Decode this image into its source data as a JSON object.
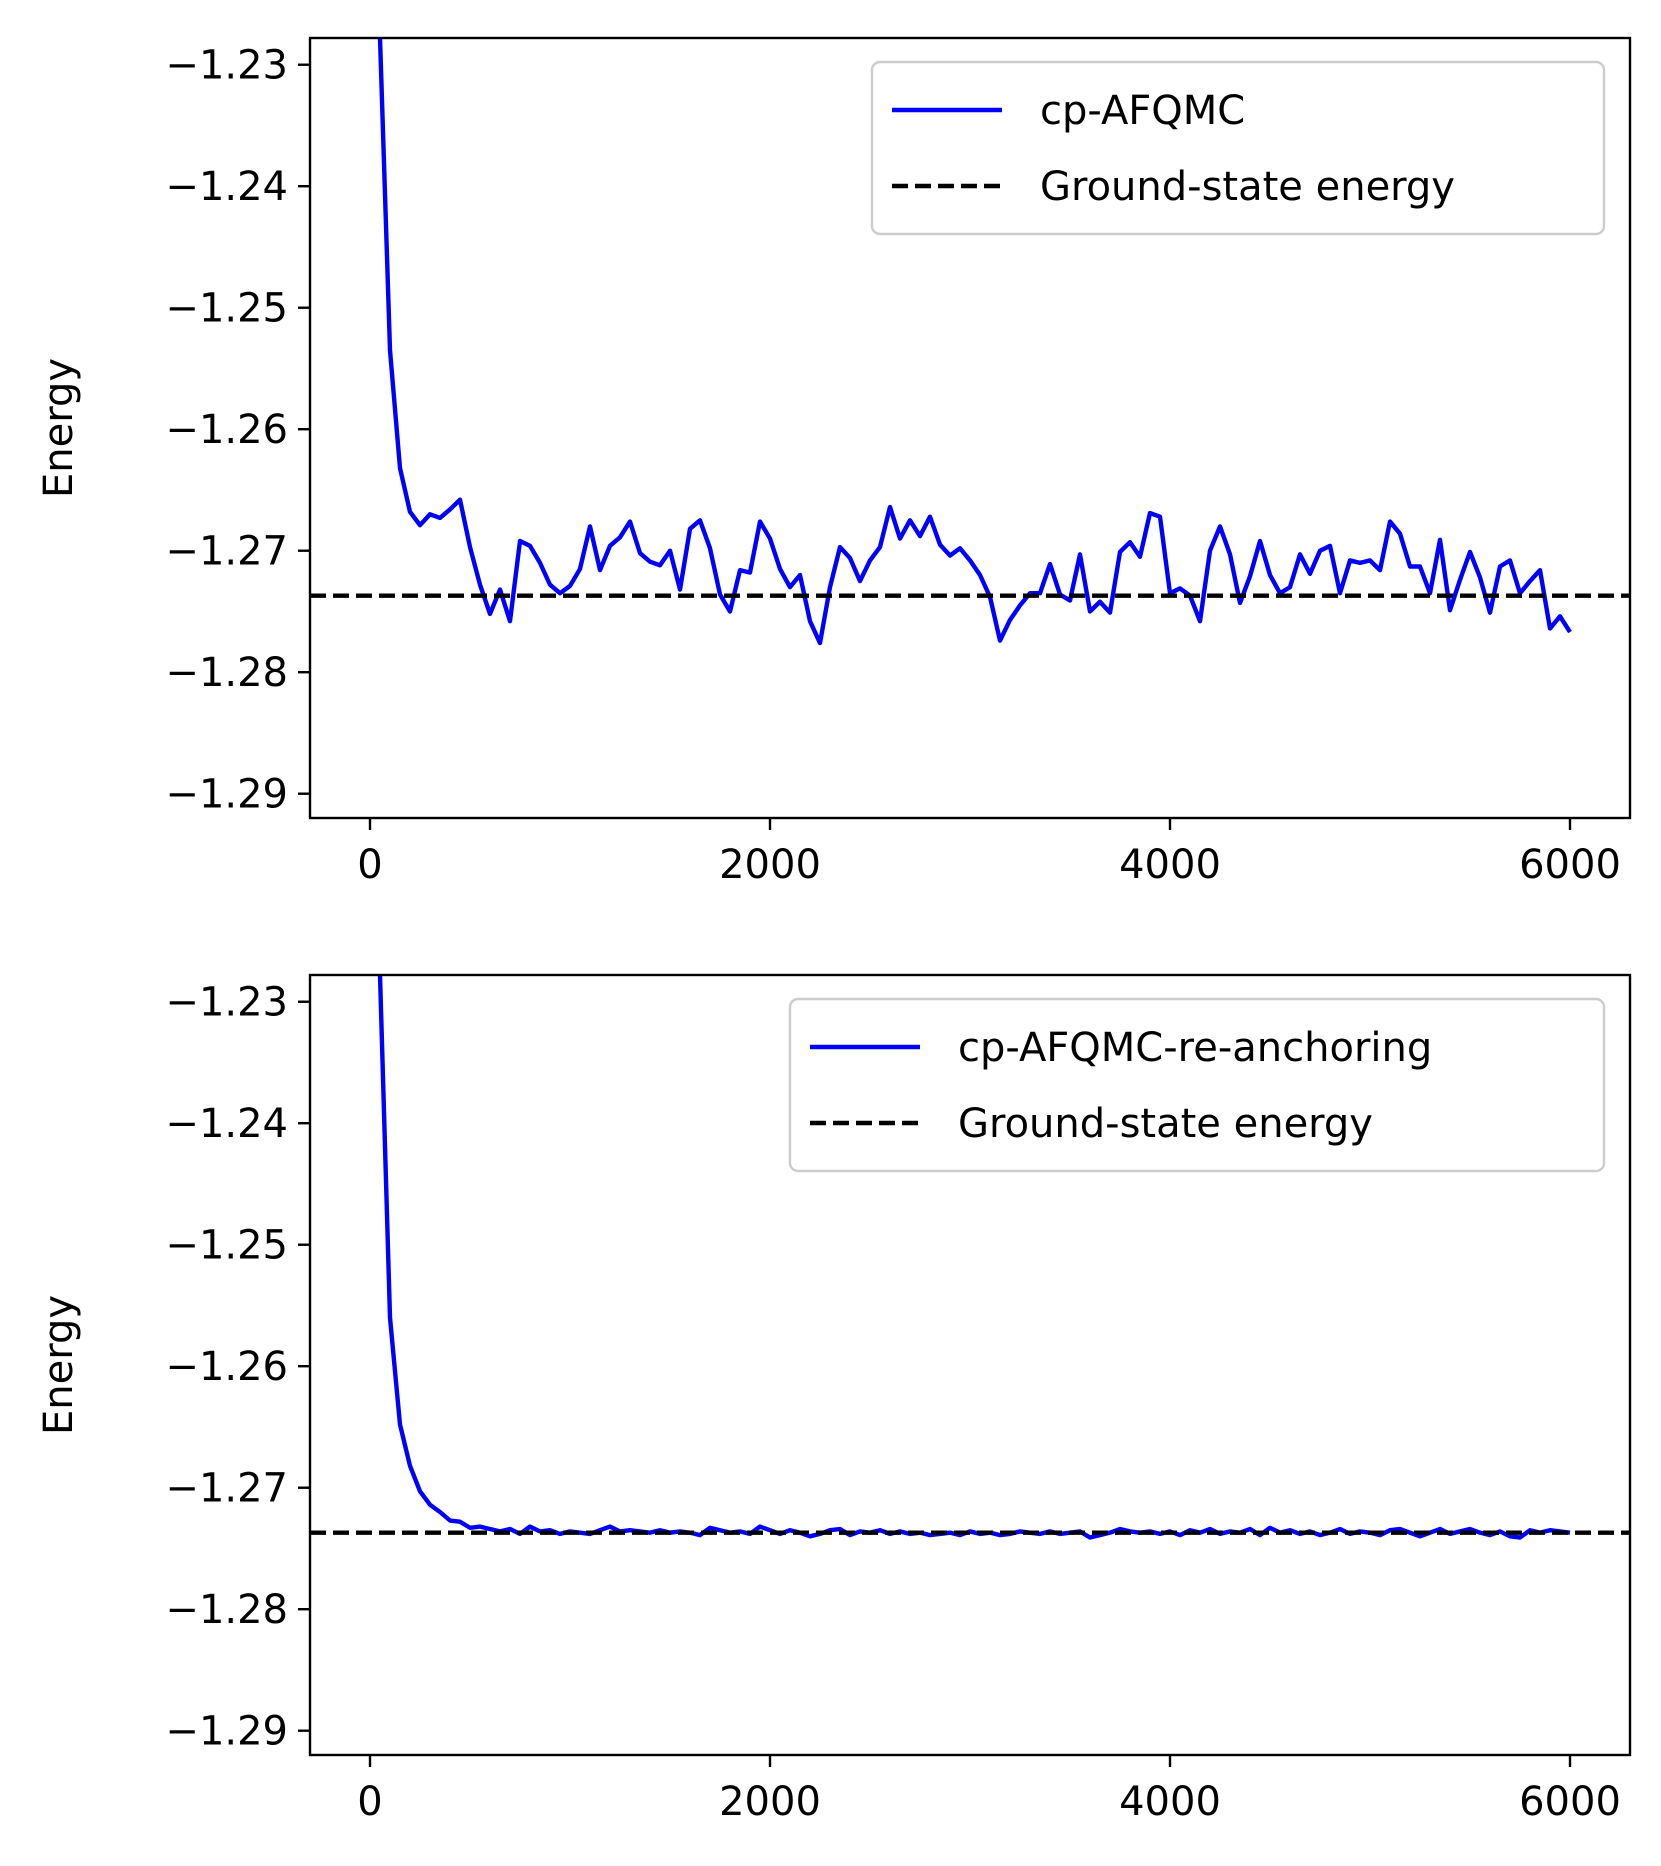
{
  "colors": {
    "series": "#0000ff",
    "reference": "#000000",
    "legend_border": "#cccccc"
  },
  "chart_data": [
    {
      "type": "line",
      "ylabel": "Energy",
      "xlabel": "",
      "xlim": [
        -300,
        6300
      ],
      "ylim": [
        -1.292,
        -1.2278
      ],
      "xticks": [
        0,
        2000,
        4000,
        6000
      ],
      "xtick_labels": [
        "0",
        "2000",
        "4000",
        "6000"
      ],
      "yticks": [
        -1.23,
        -1.24,
        -1.25,
        -1.26,
        -1.27,
        -1.28,
        -1.29
      ],
      "ytick_labels": [
        "−1.23",
        "−1.24",
        "−1.25",
        "−1.26",
        "−1.27",
        "−1.28",
        "−1.29"
      ],
      "grid": false,
      "legend_position": "upper-right",
      "series": [
        {
          "name": "cp-AFQMC",
          "color": "#0000ff",
          "style": "solid",
          "x": [
            50,
            100,
            150,
            200,
            250,
            300,
            350,
            400,
            450,
            500,
            550,
            600,
            650,
            700,
            750,
            800,
            850,
            900,
            950,
            1000,
            1050,
            1100,
            1150,
            1200,
            1250,
            1300,
            1350,
            1400,
            1450,
            1500,
            1550,
            1600,
            1650,
            1700,
            1750,
            1800,
            1850,
            1900,
            1950,
            2000,
            2050,
            2100,
            2150,
            2200,
            2250,
            2300,
            2350,
            2400,
            2450,
            2500,
            2550,
            2600,
            2650,
            2700,
            2750,
            2800,
            2850,
            2900,
            2950,
            3000,
            3050,
            3100,
            3150,
            3200,
            3250,
            3300,
            3350,
            3400,
            3450,
            3500,
            3550,
            3600,
            3650,
            3700,
            3750,
            3800,
            3850,
            3900,
            3950,
            4000,
            4050,
            4100,
            4150,
            4200,
            4250,
            4300,
            4350,
            4400,
            4450,
            4500,
            4550,
            4600,
            4650,
            4700,
            4750,
            4800,
            4850,
            4900,
            4950,
            5000,
            5050,
            5100,
            5150,
            5200,
            5250,
            5300,
            5350,
            5400,
            5450,
            5500,
            5550,
            5600,
            5650,
            5700,
            5750,
            5800,
            5850,
            5900,
            5950,
            6000
          ],
          "y": [
            -1.2278,
            -1.2535,
            -1.2632,
            -1.2668,
            -1.2679,
            -1.267,
            -1.2673,
            -1.2666,
            -1.2658,
            -1.2697,
            -1.2728,
            -1.2752,
            -1.2732,
            -1.2758,
            -1.2692,
            -1.2696,
            -1.271,
            -1.2728,
            -1.2735,
            -1.2729,
            -1.2715,
            -1.268,
            -1.2716,
            -1.2696,
            -1.2689,
            -1.2676,
            -1.2702,
            -1.2709,
            -1.2712,
            -1.27,
            -1.2732,
            -1.2682,
            -1.2675,
            -1.2698,
            -1.2736,
            -1.275,
            -1.2716,
            -1.2718,
            -1.2676,
            -1.269,
            -1.2715,
            -1.273,
            -1.272,
            -1.2758,
            -1.2776,
            -1.273,
            -1.2697,
            -1.2706,
            -1.2725,
            -1.2708,
            -1.2697,
            -1.2664,
            -1.269,
            -1.2675,
            -1.2688,
            -1.2672,
            -1.2695,
            -1.2704,
            -1.2698,
            -1.2708,
            -1.272,
            -1.2738,
            -1.2774,
            -1.2757,
            -1.2745,
            -1.2735,
            -1.2735,
            -1.2711,
            -1.2736,
            -1.2741,
            -1.2703,
            -1.275,
            -1.2742,
            -1.2751,
            -1.2701,
            -1.2693,
            -1.2705,
            -1.2669,
            -1.2672,
            -1.2735,
            -1.2731,
            -1.2737,
            -1.2758,
            -1.27,
            -1.268,
            -1.2703,
            -1.2743,
            -1.2721,
            -1.2692,
            -1.272,
            -1.2735,
            -1.273,
            -1.2703,
            -1.2719,
            -1.27,
            -1.2696,
            -1.2735,
            -1.2708,
            -1.271,
            -1.2708,
            -1.2716,
            -1.2676,
            -1.2686,
            -1.2713,
            -1.2713,
            -1.2735,
            -1.2691,
            -1.2749,
            -1.2724,
            -1.2701,
            -1.2722,
            -1.2751,
            -1.2713,
            -1.2708,
            -1.2735,
            -1.2725,
            -1.2716,
            -1.2764,
            -1.2754,
            -1.2767
          ]
        },
        {
          "name": "Ground-state energy",
          "color": "#000000",
          "style": "dashed",
          "x": [
            -300,
            6300
          ],
          "y": [
            -1.2737,
            -1.2737
          ]
        }
      ]
    },
    {
      "type": "line",
      "ylabel": "Energy",
      "xlabel": "",
      "xlim": [
        -300,
        6300
      ],
      "ylim": [
        -1.292,
        -1.2278
      ],
      "xticks": [
        0,
        2000,
        4000,
        6000
      ],
      "xtick_labels": [
        "0",
        "2000",
        "4000",
        "6000"
      ],
      "yticks": [
        -1.23,
        -1.24,
        -1.25,
        -1.26,
        -1.27,
        -1.28,
        -1.29
      ],
      "ytick_labels": [
        "−1.23",
        "−1.24",
        "−1.25",
        "−1.26",
        "−1.27",
        "−1.28",
        "−1.29"
      ],
      "grid": false,
      "legend_position": "upper-right",
      "series": [
        {
          "name": "cp-AFQMC-re-anchoring",
          "color": "#0000ff",
          "style": "solid",
          "x": [
            50,
            100,
            150,
            200,
            250,
            300,
            350,
            400,
            450,
            500,
            550,
            600,
            650,
            700,
            750,
            800,
            850,
            900,
            950,
            1000,
            1050,
            1100,
            1150,
            1200,
            1250,
            1300,
            1350,
            1400,
            1450,
            1500,
            1550,
            1600,
            1650,
            1700,
            1750,
            1800,
            1850,
            1900,
            1950,
            2000,
            2050,
            2100,
            2150,
            2200,
            2250,
            2300,
            2350,
            2400,
            2450,
            2500,
            2550,
            2600,
            2650,
            2700,
            2750,
            2800,
            2850,
            2900,
            2950,
            3000,
            3050,
            3100,
            3150,
            3200,
            3250,
            3300,
            3350,
            3400,
            3450,
            3500,
            3550,
            3600,
            3650,
            3700,
            3750,
            3800,
            3850,
            3900,
            3950,
            4000,
            4050,
            4100,
            4150,
            4200,
            4250,
            4300,
            4350,
            4400,
            4450,
            4500,
            4550,
            4600,
            4650,
            4700,
            4750,
            4800,
            4850,
            4900,
            4950,
            5000,
            5050,
            5100,
            5150,
            5200,
            5250,
            5300,
            5350,
            5400,
            5450,
            5500,
            5550,
            5600,
            5650,
            5700,
            5750,
            5800,
            5850,
            5900,
            5950,
            6000
          ],
          "y": [
            -1.2278,
            -1.256,
            -1.2648,
            -1.2682,
            -1.2703,
            -1.2714,
            -1.272,
            -1.2727,
            -1.2728,
            -1.2733,
            -1.2732,
            -1.2734,
            -1.2736,
            -1.2734,
            -1.2738,
            -1.2732,
            -1.2736,
            -1.2735,
            -1.2738,
            -1.2736,
            -1.2737,
            -1.2738,
            -1.2735,
            -1.2732,
            -1.2736,
            -1.2735,
            -1.2736,
            -1.2737,
            -1.2735,
            -1.2737,
            -1.2736,
            -1.2737,
            -1.2739,
            -1.2733,
            -1.2735,
            -1.2737,
            -1.2736,
            -1.2738,
            -1.2732,
            -1.2735,
            -1.2738,
            -1.2735,
            -1.2737,
            -1.274,
            -1.2738,
            -1.2735,
            -1.2734,
            -1.2739,
            -1.2736,
            -1.2737,
            -1.2735,
            -1.2738,
            -1.2736,
            -1.2738,
            -1.2737,
            -1.2739,
            -1.2738,
            -1.2737,
            -1.2739,
            -1.2736,
            -1.2738,
            -1.2737,
            -1.2739,
            -1.2738,
            -1.2736,
            -1.2737,
            -1.2738,
            -1.2736,
            -1.2738,
            -1.2737,
            -1.2736,
            -1.2741,
            -1.2739,
            -1.2737,
            -1.2734,
            -1.2736,
            -1.2737,
            -1.2736,
            -1.2738,
            -1.2736,
            -1.2739,
            -1.2735,
            -1.2737,
            -1.2734,
            -1.2738,
            -1.2736,
            -1.2737,
            -1.2734,
            -1.2739,
            -1.2733,
            -1.2737,
            -1.2735,
            -1.2738,
            -1.2736,
            -1.2739,
            -1.2737,
            -1.2734,
            -1.2738,
            -1.2736,
            -1.2737,
            -1.2739,
            -1.2735,
            -1.2734,
            -1.2737,
            -1.274,
            -1.2737,
            -1.2734,
            -1.2738,
            -1.2736,
            -1.2734,
            -1.2737,
            -1.2739,
            -1.2736,
            -1.274,
            -1.2741,
            -1.2735,
            -1.2737,
            -1.2735,
            -1.2736,
            -1.2737
          ]
        },
        {
          "name": "Ground-state energy",
          "color": "#000000",
          "style": "dashed",
          "x": [
            -300,
            6300
          ],
          "y": [
            -1.2737,
            -1.2737
          ]
        }
      ]
    }
  ]
}
